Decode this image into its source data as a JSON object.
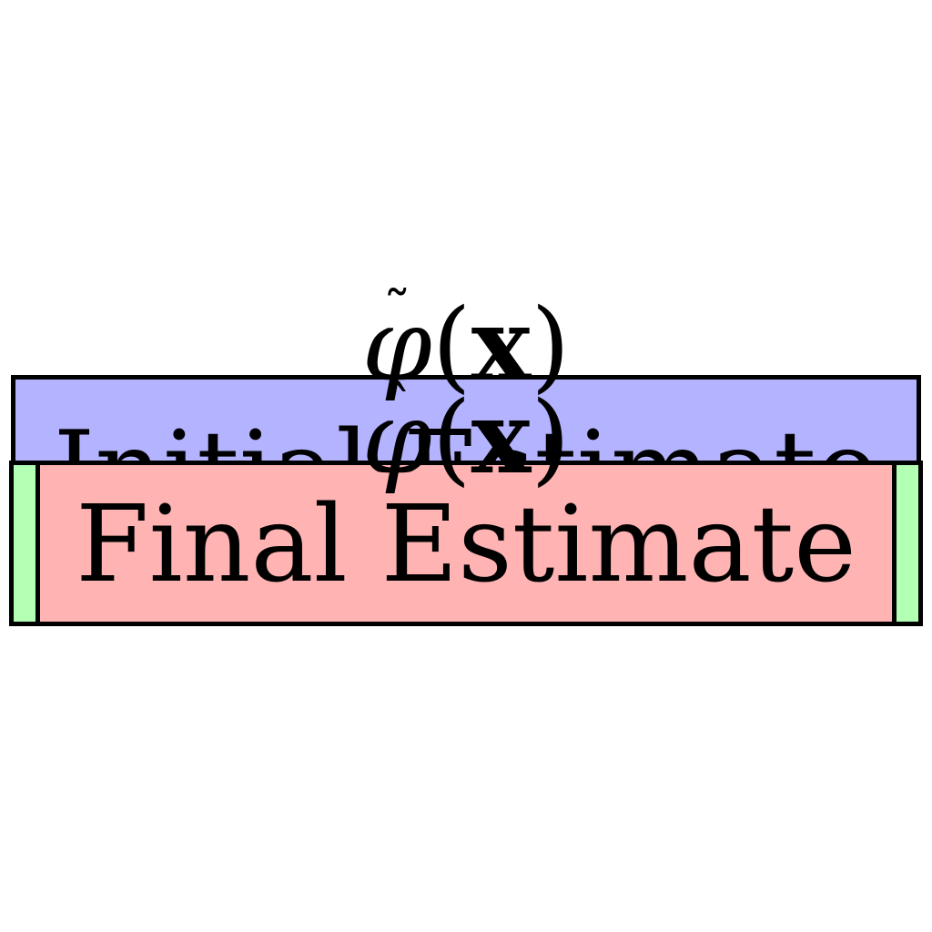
{
  "diagram": {
    "initial_estimate": {
      "label": "Initial Estimate",
      "fill": "#b3b3ff"
    },
    "final_estimate": {
      "label": "Final Estimate",
      "fill": "#ffb3b3",
      "side_fill": "#b3ffb3"
    },
    "formulas": {
      "tilde_phi": {
        "symbol": "φ",
        "accent": "˜",
        "open": "(",
        "var": "x",
        "close": ")"
      },
      "hat_phi": {
        "symbol": "φ",
        "accent": "ˆ",
        "open": "(",
        "var": "x",
        "close": ")"
      }
    },
    "connector": {
      "glyph": "ˇ"
    }
  }
}
